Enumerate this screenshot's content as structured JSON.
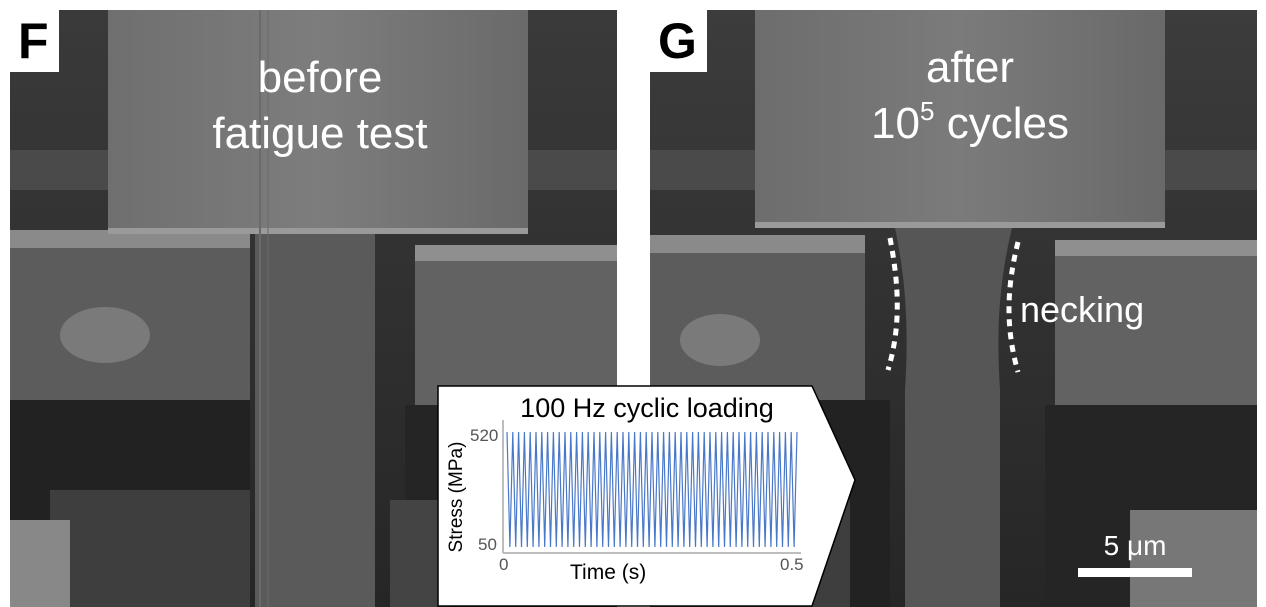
{
  "panel_f": {
    "letter": "F",
    "label_line1": "before",
    "label_line2": "fatigue test"
  },
  "panel_g": {
    "letter": "G",
    "label_line1": "after",
    "label_line2_base": "10",
    "label_line2_sup": "5",
    "label_line2_rest": " cycles",
    "necking_label": "necking",
    "scale_label": "5 μm"
  },
  "chart_data": {
    "type": "line",
    "title": "100 Hz cyclic loading",
    "xlabel": "Time (s)",
    "ylabel": "Stress (MPa)",
    "xlim": [
      0,
      0.5
    ],
    "ylim": [
      50,
      520
    ],
    "x_tick_labels": [
      "0",
      "0.5"
    ],
    "y_tick_labels": [
      "50",
      "520"
    ],
    "frequency_hz": 100,
    "min_stress": 50,
    "max_stress": 520,
    "series_color": "#4a78c8"
  }
}
